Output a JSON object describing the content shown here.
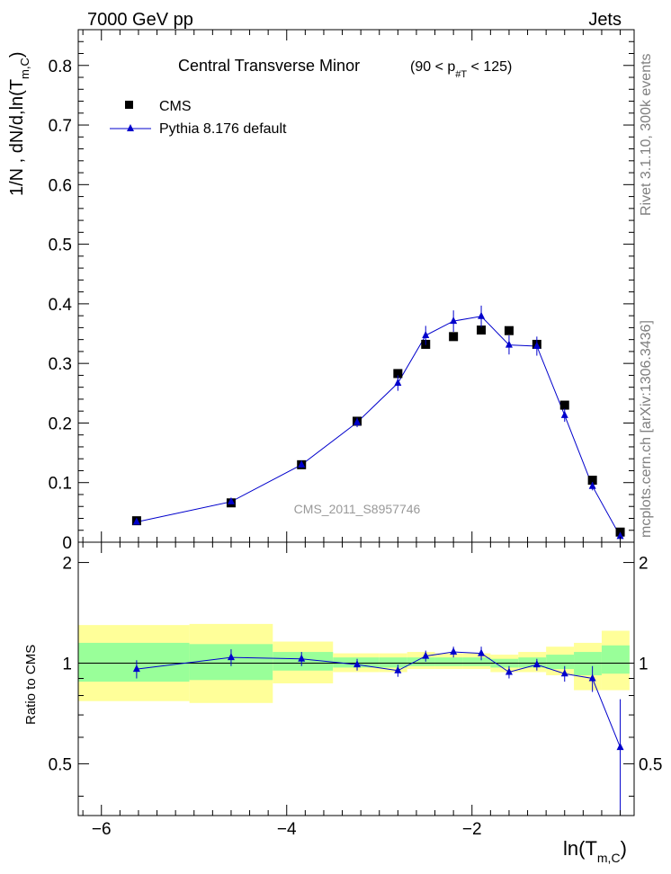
{
  "header": {
    "left": "7000 GeV pp",
    "right": "Jets"
  },
  "side_labels": {
    "top": "Rivet 3.1.10,  300k events",
    "bottom": "mcplots.cern.ch [arXiv:1306.3436]"
  },
  "chart_data": {
    "type": "scatter",
    "title": "Central Transverse Minor",
    "title_cut": {
      "prefix": "(90 < p",
      "sub": "#T",
      "suffix": " < 125)"
    },
    "ylabel": {
      "text": "1/N  , dN/d,ln(T",
      "sub": "m,C",
      "close": ")"
    },
    "xlabel": {
      "text": "ln(T",
      "sub": "m,C",
      "close": ")"
    },
    "watermark": "CMS_2011_S8957746",
    "xlim": [
      -6.25,
      -0.25
    ],
    "ylim": [
      0,
      0.86
    ],
    "yticks": [
      0,
      0.1,
      0.2,
      0.3,
      0.4,
      0.5,
      0.6,
      0.7,
      0.8
    ],
    "ytick_labels": [
      "0",
      "0.1",
      "0.2",
      "0.3",
      "0.4",
      "0.5",
      "0.6",
      "0.7",
      "0.8"
    ],
    "xticks": [
      -6,
      -4,
      -2
    ],
    "xtick_labels": [
      "−6",
      "−4",
      "−2"
    ],
    "legend": {
      "data": "CMS",
      "mc": "Pythia 8.176 default",
      "position": "top-left"
    },
    "bins": [
      [
        -6.25,
        -5.05
      ],
      [
        -5.05,
        -4.15
      ],
      [
        -4.15,
        -3.5
      ],
      [
        -3.5,
        -3.0
      ],
      [
        -3.0,
        -2.7
      ],
      [
        -2.7,
        -2.4
      ],
      [
        -2.4,
        -2.1
      ],
      [
        -2.1,
        -1.8
      ],
      [
        -1.8,
        -1.5
      ],
      [
        -1.5,
        -1.2
      ],
      [
        -1.2,
        -0.9
      ],
      [
        -0.9,
        -0.6
      ],
      [
        -0.6,
        -0.3
      ]
    ],
    "x": [
      -5.62,
      -4.6,
      -3.84,
      -3.24,
      -2.8,
      -2.5,
      -2.2,
      -1.9,
      -1.6,
      -1.3,
      -1.0,
      -0.7,
      -0.4
    ],
    "series": [
      {
        "name": "CMS",
        "values": [
          0.036,
          0.066,
          0.13,
          0.203,
          0.283,
          0.332,
          0.345,
          0.356,
          0.355,
          0.332,
          0.23,
          0.104,
          0.017
        ],
        "color": "#000000"
      },
      {
        "name": "Pythia 8.176 default",
        "values": [
          0.034,
          0.068,
          0.13,
          0.201,
          0.267,
          0.347,
          0.371,
          0.379,
          0.331,
          0.329,
          0.213,
          0.094,
          0.01
        ],
        "errors": [
          0.002,
          0.003,
          0.005,
          0.008,
          0.013,
          0.016,
          0.018,
          0.018,
          0.016,
          0.016,
          0.011,
          0.007,
          0.004
        ],
        "color": "#0000cc"
      }
    ],
    "ratio": {
      "ylabel": "Ratio to CMS",
      "ylim": [
        0.35,
        2.3
      ],
      "yticks": [
        0.5,
        1,
        2
      ],
      "ytick_labels": [
        "0.5",
        "1",
        "2"
      ],
      "values": [
        0.96,
        1.04,
        1.03,
        0.99,
        0.95,
        1.05,
        1.08,
        1.07,
        0.94,
        0.99,
        0.93,
        0.9,
        0.56
      ],
      "errors": [
        0.06,
        0.06,
        0.05,
        0.04,
        0.04,
        0.04,
        0.04,
        0.05,
        0.04,
        0.04,
        0.05,
        0.08,
        0.22
      ],
      "band_yellow": [
        [
          0.77,
          1.3
        ],
        [
          0.76,
          1.31
        ],
        [
          0.87,
          1.16
        ],
        [
          0.94,
          1.07
        ],
        [
          0.94,
          1.07
        ],
        [
          0.96,
          1.08
        ],
        [
          0.96,
          1.07
        ],
        [
          0.96,
          1.07
        ],
        [
          0.94,
          1.06
        ],
        [
          0.94,
          1.08
        ],
        [
          0.92,
          1.12
        ],
        [
          0.83,
          1.15
        ],
        [
          0.83,
          1.25
        ]
      ],
      "band_green": [
        [
          0.88,
          1.15
        ],
        [
          0.89,
          1.14
        ],
        [
          0.95,
          1.08
        ],
        [
          0.97,
          1.04
        ],
        [
          0.97,
          1.04
        ],
        [
          0.98,
          1.04
        ],
        [
          0.98,
          1.04
        ],
        [
          0.98,
          1.04
        ],
        [
          0.97,
          1.03
        ],
        [
          0.97,
          1.04
        ],
        [
          0.96,
          1.06
        ],
        [
          0.92,
          1.08
        ],
        [
          0.93,
          1.13
        ]
      ],
      "color_yellow": "#ffff99",
      "color_green": "#99ff99"
    }
  }
}
